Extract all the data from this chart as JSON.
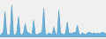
{
  "values": [
    0.1,
    0.15,
    0.2,
    0.8,
    0.15,
    0.1,
    0.15,
    1.0,
    0.15,
    0.1,
    0.2,
    0.65,
    0.15,
    0.12,
    0.18,
    0.45,
    0.2,
    0.18,
    0.15,
    0.12,
    0.55,
    0.15,
    0.12,
    0.15,
    0.18,
    0.2,
    0.9,
    0.15,
    0.12,
    0.18,
    0.15,
    0.12,
    0.35,
    0.15,
    0.12,
    0.85,
    0.18,
    0.15,
    0.12,
    0.18,
    0.5,
    0.15,
    0.18,
    0.15,
    0.2,
    0.18,
    0.4,
    0.15,
    0.12,
    0.18,
    0.15,
    0.12,
    0.18,
    0.2,
    0.18,
    0.15,
    0.18,
    0.15,
    0.18,
    0.15,
    0.18,
    0.2,
    0.18,
    0.15
  ],
  "fill_color": "#6ab0d8",
  "line_color": "#5a9fc8",
  "background_color": "#f0f0f0",
  "baseline": 0.05
}
